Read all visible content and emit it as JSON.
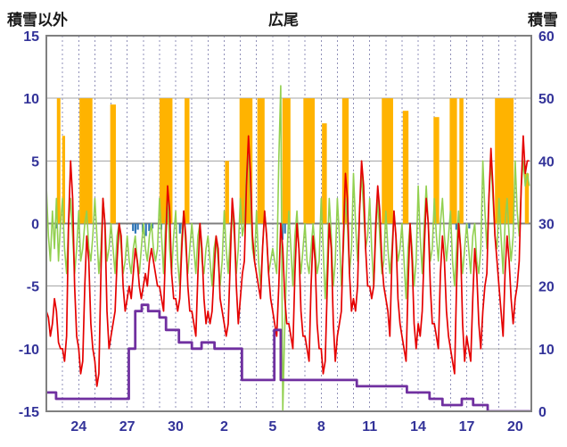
{
  "header": {
    "left": "積雪以外",
    "center": "広尾",
    "right": "積雪"
  },
  "chart_data": {
    "type": "line",
    "title": "広尾",
    "left_axis": {
      "label": "積雪以外",
      "min": -15,
      "max": 15,
      "ticks": [
        15,
        10,
        5,
        0,
        -5,
        -10,
        -15
      ]
    },
    "right_axis": {
      "label": "積雪",
      "min": 0,
      "max": 60,
      "ticks": [
        60,
        50,
        40,
        30,
        20,
        10,
        0
      ]
    },
    "x_axis": {
      "days_total": 30,
      "tick_days": [
        2,
        5,
        8,
        11,
        14,
        17,
        20,
        23,
        26,
        29
      ],
      "tick_labels": [
        "24",
        "27",
        "30",
        "2",
        "5",
        "8",
        "11",
        "14",
        "17",
        "20"
      ]
    },
    "grid": {
      "h_lines": [
        10,
        5,
        0,
        -5,
        -10
      ],
      "v_step_days": 1
    },
    "colors": {
      "sunshine": "#FFB300",
      "precip": "#2E75B6",
      "temperature": "#E50000",
      "green": "#92D050",
      "snow": "#7030A0",
      "grid": "#A6A6A6",
      "zero_line": "#7F7F7F",
      "v_grid": "#9090B8",
      "border": "#808080",
      "tick_text": "#333399"
    },
    "series": {
      "sunshine_bars": [
        {
          "d": 0.65,
          "w": 0.22,
          "h": 10
        },
        {
          "d": 0.98,
          "w": 0.18,
          "h": 7
        },
        {
          "d": 2.05,
          "w": 0.8,
          "h": 10
        },
        {
          "d": 3.95,
          "w": 0.35,
          "h": 9.5
        },
        {
          "d": 7.0,
          "w": 0.8,
          "h": 10
        },
        {
          "d": 8.55,
          "w": 0.3,
          "h": 10
        },
        {
          "d": 11.05,
          "w": 0.25,
          "h": 5
        },
        {
          "d": 11.95,
          "w": 0.8,
          "h": 10
        },
        {
          "d": 13.05,
          "w": 0.45,
          "h": 10
        },
        {
          "d": 14.6,
          "w": 0.5,
          "h": 10
        },
        {
          "d": 15.9,
          "w": 0.7,
          "h": 10
        },
        {
          "d": 17.05,
          "w": 0.3,
          "h": 8
        },
        {
          "d": 18.3,
          "w": 0.4,
          "h": 10
        },
        {
          "d": 20.75,
          "w": 0.7,
          "h": 10
        },
        {
          "d": 22.05,
          "w": 0.35,
          "h": 9
        },
        {
          "d": 23.95,
          "w": 0.35,
          "h": 8.5
        },
        {
          "d": 24.95,
          "w": 0.45,
          "h": 10
        },
        {
          "d": 25.55,
          "w": 0.25,
          "h": 10
        },
        {
          "d": 27.75,
          "w": 1.15,
          "h": 10
        },
        {
          "d": 29.6,
          "w": 0.25,
          "h": 4
        }
      ],
      "precip_bars": [
        {
          "d": 0.55,
          "v": -0.4
        },
        {
          "d": 5.3,
          "v": -0.6
        },
        {
          "d": 5.45,
          "v": -0.8
        },
        {
          "d": 5.6,
          "v": -0.5
        },
        {
          "d": 5.9,
          "v": -0.7
        },
        {
          "d": 6.1,
          "v": -1.0
        },
        {
          "d": 6.3,
          "v": -0.6
        },
        {
          "d": 6.5,
          "v": -0.4
        },
        {
          "d": 7.05,
          "v": -0.5
        },
        {
          "d": 8.2,
          "v": -0.8
        },
        {
          "d": 8.35,
          "v": -0.5
        },
        {
          "d": 14.55,
          "v": -1.3
        },
        {
          "d": 14.7,
          "v": -0.8
        },
        {
          "d": 25.3,
          "v": -0.5
        },
        {
          "d": 26.1,
          "v": -0.4
        }
      ],
      "temperature_red": {
        "samples_per_day": 8,
        "values_by_day": [
          [
            -7,
            -7.5,
            -9,
            -8,
            -6,
            -7,
            -9.5,
            -10
          ],
          [
            -10,
            -11,
            -9,
            0,
            5,
            2,
            -5,
            -9
          ],
          [
            -10,
            -12,
            -11,
            -5,
            -1,
            -3,
            -8,
            -10
          ],
          [
            -11,
            -13,
            -12,
            -4,
            2,
            0,
            -7,
            -10
          ],
          [
            -9,
            -8,
            -7,
            -3,
            0,
            -1,
            -5,
            -7
          ],
          [
            -6,
            -5,
            -6,
            -4,
            -2,
            -3,
            -5,
            -6
          ],
          [
            -5,
            -4,
            -5,
            -3,
            -2,
            -3,
            -4,
            -5
          ],
          [
            -5,
            -6,
            -7,
            -2,
            3,
            1,
            -4,
            -6
          ],
          [
            -6,
            -7,
            -6,
            -2,
            1,
            -1,
            -5,
            -7
          ],
          [
            -7,
            -8,
            -9,
            -4,
            0,
            -2,
            -6,
            -8
          ],
          [
            -7,
            -8,
            -7,
            -4,
            -1,
            -2,
            -6,
            -7
          ],
          [
            -8,
            -9,
            -8,
            -3,
            2,
            0,
            -5,
            -8
          ],
          [
            -6,
            -4,
            -3,
            3,
            7,
            4,
            -1,
            -3
          ],
          [
            -4,
            -5,
            -6,
            -2,
            1,
            -1,
            -4,
            -6
          ],
          [
            -7,
            -8,
            -9,
            -5,
            0,
            -2,
            -6,
            -8
          ],
          [
            -8,
            -9,
            -10,
            -4,
            0,
            -2,
            -7,
            -9
          ],
          [
            -9,
            -10,
            -11,
            -5,
            -1,
            -3,
            -8,
            -10
          ],
          [
            -10,
            -12,
            -11,
            -5,
            0,
            -2,
            -8,
            -11
          ],
          [
            -9,
            -8,
            -7,
            -1,
            4,
            2,
            -4,
            -7
          ],
          [
            -6,
            -7,
            -5,
            1,
            5,
            3,
            -2,
            -5
          ],
          [
            -5,
            -6,
            -5,
            0,
            3,
            1,
            -3,
            -5
          ],
          [
            -6,
            -7,
            -9,
            -3,
            1,
            -1,
            -6,
            -8
          ],
          [
            -9,
            -10,
            -11,
            -5,
            0,
            -3,
            -8,
            -10
          ],
          [
            -8,
            -9,
            -7,
            -2,
            2,
            0,
            -5,
            -8
          ],
          [
            -8,
            -9,
            -10,
            -4,
            -1,
            -3,
            -7,
            -9
          ],
          [
            -10,
            -11,
            -12,
            -5,
            0,
            -2,
            -8,
            -11
          ],
          [
            -9,
            -10,
            -11,
            -6,
            -2,
            -4,
            -8,
            -10
          ],
          [
            -7,
            -5,
            -4,
            2,
            6,
            3,
            -1,
            -3
          ],
          [
            -5,
            -7,
            -9,
            -4,
            -1,
            -3,
            -6,
            -8
          ],
          [
            -6,
            -5,
            -3,
            3,
            7,
            4,
            5,
            5
          ]
        ]
      },
      "green_line": {
        "samples_per_day": 8,
        "values_by_day": [
          [
            3,
            -1,
            -3,
            1,
            -2,
            2,
            -3,
            0
          ],
          [
            2,
            -2,
            -4,
            0,
            2,
            -1,
            -4,
            -2
          ],
          [
            1,
            -3,
            -2,
            0,
            1,
            -2,
            -3,
            -1
          ],
          [
            2,
            -1,
            -4,
            -2,
            2,
            0,
            -3,
            -2
          ],
          [
            0,
            -2,
            -4,
            -1,
            0,
            -2,
            -4,
            -3
          ],
          [
            -1,
            -3,
            -4,
            -2,
            -1,
            -3,
            -4,
            -2
          ],
          [
            0,
            -2,
            -3,
            -1,
            0,
            -2,
            -3,
            -2
          ],
          [
            2,
            -1,
            -4,
            0,
            2,
            -2,
            -4,
            -1
          ],
          [
            1,
            -3,
            -5,
            -1,
            1,
            -2,
            -4,
            -2
          ],
          [
            0,
            -2,
            -4,
            -1,
            0,
            -3,
            -4,
            -2
          ],
          [
            -1,
            -3,
            -5,
            -2,
            -1,
            -3,
            -5,
            -3
          ],
          [
            1,
            -2,
            -4,
            -1,
            1,
            -1,
            -4,
            -2
          ],
          [
            2,
            -1,
            0,
            4,
            6,
            2,
            -2,
            -3
          ],
          [
            1,
            -3,
            -5,
            -2,
            1,
            -1,
            -4,
            -3
          ],
          [
            -2,
            -3,
            -4,
            5,
            11,
            -15,
            -8,
            -3
          ],
          [
            1,
            -2,
            -5,
            -1,
            1,
            -2,
            -4,
            -2
          ],
          [
            0,
            -3,
            -4,
            -2,
            0,
            -2,
            -4,
            -3
          ],
          [
            2,
            -2,
            -6,
            -3,
            2,
            -1,
            -5,
            -3
          ],
          [
            2,
            -1,
            -5,
            -2,
            2,
            0,
            -4,
            -2
          ],
          [
            4,
            0,
            -3,
            1,
            4,
            1,
            -2,
            -1
          ],
          [
            2,
            -2,
            -5,
            -1,
            2,
            -1,
            -4,
            -3
          ],
          [
            1,
            -2,
            -4,
            -2,
            1,
            -1,
            -3,
            -2
          ],
          [
            0,
            -3,
            -6,
            -2,
            0,
            -2,
            -5,
            -3
          ],
          [
            3,
            -1,
            -4,
            0,
            3,
            0,
            -3,
            -2
          ],
          [
            2,
            -1,
            -3,
            0,
            2,
            -1,
            -3,
            -1
          ],
          [
            1,
            -3,
            -5,
            -2,
            1,
            -2,
            -4,
            -2
          ],
          [
            0,
            -2,
            -4,
            -1,
            0,
            -3,
            -4,
            -2
          ],
          [
            5,
            1,
            -2,
            2,
            5,
            2,
            -1,
            -2
          ],
          [
            2,
            -1,
            -4,
            0,
            2,
            -1,
            -3,
            -1
          ],
          [
            5,
            1,
            -1,
            3,
            5,
            3,
            4,
            3
          ]
        ]
      },
      "snow_depth_steps": [
        [
          0,
          3
        ],
        [
          0.6,
          2
        ],
        [
          5.1,
          10
        ],
        [
          5.5,
          16
        ],
        [
          5.9,
          17
        ],
        [
          6.3,
          16
        ],
        [
          7.0,
          15
        ],
        [
          7.4,
          13
        ],
        [
          8.2,
          11
        ],
        [
          9.0,
          10
        ],
        [
          9.6,
          11
        ],
        [
          10.4,
          10
        ],
        [
          12.1,
          5
        ],
        [
          14.1,
          13
        ],
        [
          14.5,
          5
        ],
        [
          19.2,
          4
        ],
        [
          22.3,
          3
        ],
        [
          23.7,
          2
        ],
        [
          24.5,
          1
        ],
        [
          25.7,
          2
        ],
        [
          26.4,
          1
        ],
        [
          27.3,
          0
        ],
        [
          30,
          0
        ]
      ]
    }
  }
}
